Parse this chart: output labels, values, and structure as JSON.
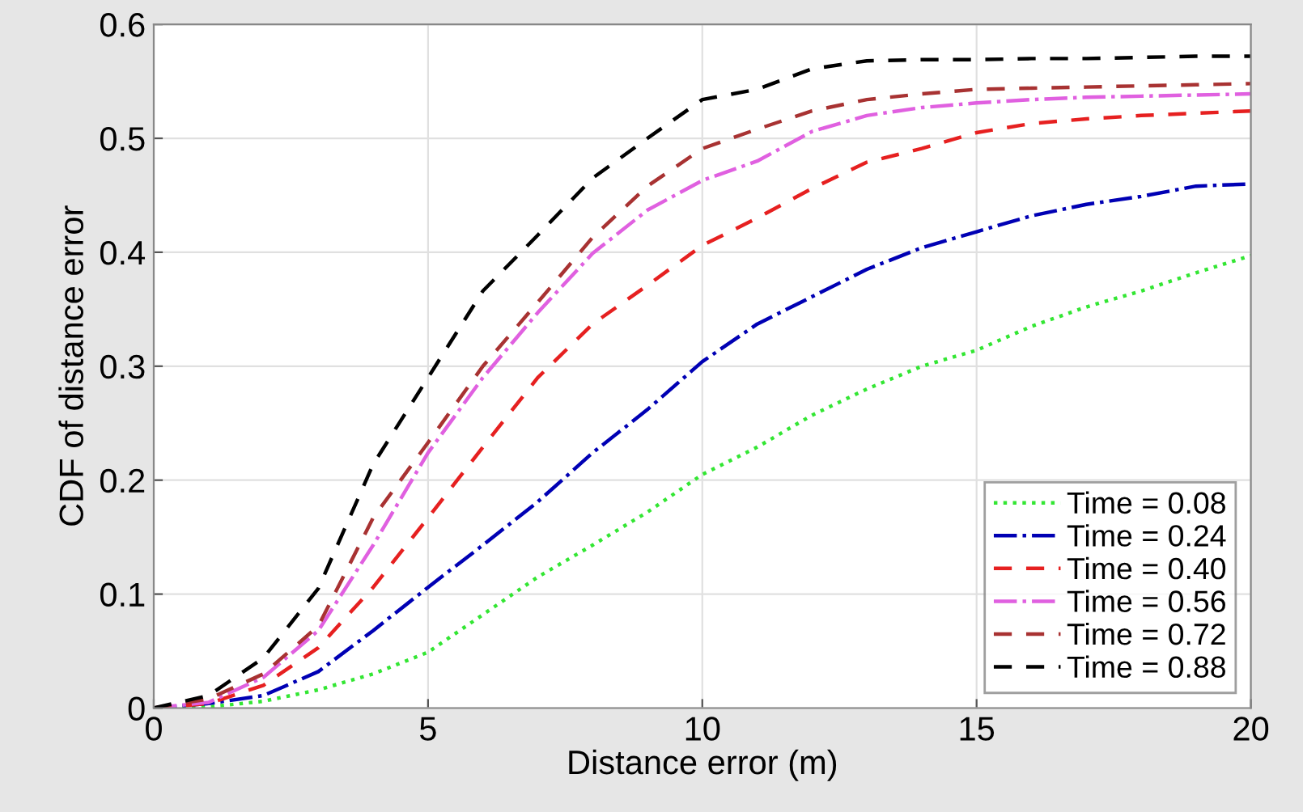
{
  "chart_data": {
    "type": "line",
    "xlabel": "Distance error (m)",
    "ylabel": "CDF of distance error",
    "x": [
      0,
      1,
      2,
      3,
      4,
      5,
      6,
      7,
      8,
      9,
      10,
      11,
      12,
      13,
      14,
      15,
      16,
      17,
      18,
      19,
      20
    ],
    "xlim": [
      0,
      20
    ],
    "xticks": [
      0,
      5,
      10,
      15,
      20
    ],
    "ylim": [
      0,
      0.6
    ],
    "yticks": [
      0,
      0.1,
      0.2,
      0.3,
      0.4,
      0.5,
      0.6
    ],
    "grid": true,
    "legend": "bottom right",
    "marker": "none",
    "series": [
      {
        "name": "Time = 0.08",
        "color": "#33e633",
        "line_style": "dotted",
        "values": [
          0,
          0.001,
          0.006,
          0.016,
          0.03,
          0.049,
          0.082,
          0.115,
          0.143,
          0.172,
          0.205,
          0.229,
          0.257,
          0.28,
          0.3,
          0.314,
          0.335,
          0.352,
          0.366,
          0.382,
          0.397
        ]
      },
      {
        "name": "Time = 0.24",
        "color": "#0000b4",
        "line_style": "dashdot",
        "values": [
          0,
          0.004,
          0.011,
          0.032,
          0.068,
          0.106,
          0.143,
          0.181,
          0.224,
          0.262,
          0.304,
          0.337,
          0.361,
          0.385,
          0.404,
          0.418,
          0.432,
          0.442,
          0.449,
          0.458,
          0.46
        ]
      },
      {
        "name": "Time = 0.40",
        "color": "#e62020",
        "line_style": "dashed",
        "values": [
          0,
          0.004,
          0.02,
          0.053,
          0.106,
          0.167,
          0.229,
          0.29,
          0.337,
          0.371,
          0.406,
          0.43,
          0.456,
          0.479,
          0.491,
          0.505,
          0.513,
          0.517,
          0.52,
          0.522,
          0.524
        ]
      },
      {
        "name": "Time = 0.56",
        "color": "#e060e0",
        "line_style": "dashdot",
        "values": [
          0,
          0.005,
          0.027,
          0.068,
          0.143,
          0.224,
          0.29,
          0.347,
          0.399,
          0.437,
          0.463,
          0.48,
          0.506,
          0.52,
          0.527,
          0.531,
          0.534,
          0.536,
          0.537,
          0.538,
          0.539
        ]
      },
      {
        "name": "Time = 0.72",
        "color": "#a83232",
        "line_style": "dashed",
        "values": [
          0,
          0.008,
          0.03,
          0.072,
          0.167,
          0.233,
          0.3,
          0.356,
          0.413,
          0.458,
          0.491,
          0.508,
          0.524,
          0.534,
          0.539,
          0.543,
          0.544,
          0.545,
          0.546,
          0.547,
          0.548
        ]
      },
      {
        "name": "Time = 0.88",
        "color": "#000000",
        "line_style": "dashed",
        "values": [
          0,
          0.011,
          0.044,
          0.105,
          0.214,
          0.29,
          0.366,
          0.415,
          0.465,
          0.5,
          0.534,
          0.543,
          0.561,
          0.568,
          0.569,
          0.569,
          0.57,
          0.57,
          0.571,
          0.572,
          0.572
        ]
      }
    ]
  }
}
